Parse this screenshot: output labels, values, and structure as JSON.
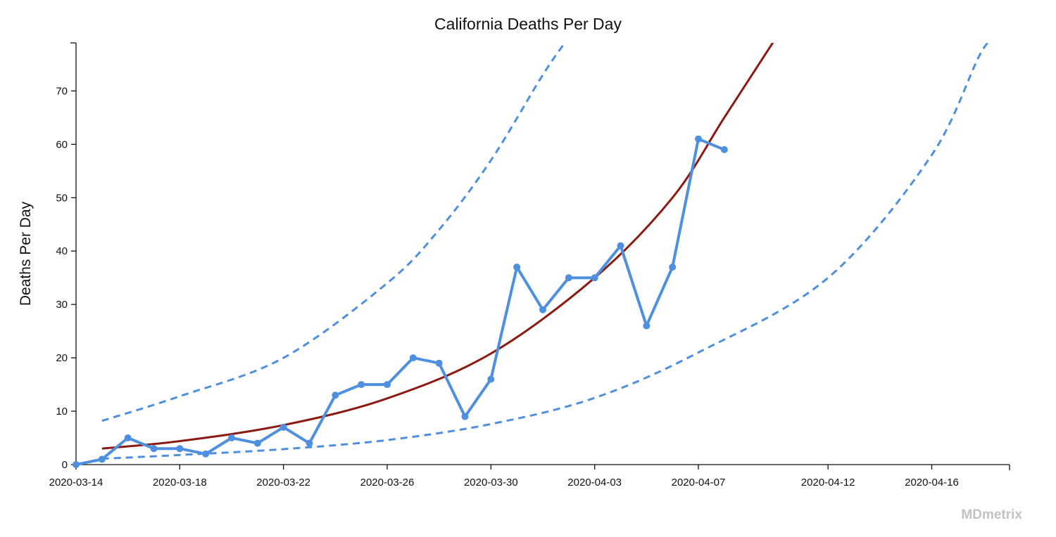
{
  "chart_data": {
    "type": "line",
    "title": "California Deaths Per Day",
    "xlabel": "",
    "ylabel": "Deaths Per Day",
    "x_ticks": [
      "2020-03-14",
      "2020-03-18",
      "2020-03-22",
      "2020-03-26",
      "2020-03-30",
      "2020-04-03",
      "2020-04-07",
      "2020-04-12",
      "2020-04-16"
    ],
    "y_ticks": [
      0,
      10,
      20,
      30,
      40,
      50,
      60,
      70
    ],
    "xlim": [
      "2020-03-14",
      "2020-04-19"
    ],
    "ylim": [
      0,
      79
    ],
    "grid": false,
    "series": [
      {
        "style": "solid-line-with-markers",
        "color": "#4f8fe0",
        "points": [
          [
            "2020-03-14",
            0
          ],
          [
            "2020-03-15",
            1
          ],
          [
            "2020-03-16",
            5
          ],
          [
            "2020-03-17",
            3
          ],
          [
            "2020-03-18",
            3
          ],
          [
            "2020-03-19",
            2
          ],
          [
            "2020-03-20",
            5
          ],
          [
            "2020-03-21",
            4
          ],
          [
            "2020-03-22",
            7
          ],
          [
            "2020-03-23",
            4
          ],
          [
            "2020-03-24",
            13
          ],
          [
            "2020-03-25",
            15
          ],
          [
            "2020-03-26",
            15
          ],
          [
            "2020-03-27",
            20
          ],
          [
            "2020-03-28",
            19
          ],
          [
            "2020-03-29",
            9
          ],
          [
            "2020-03-30",
            16
          ],
          [
            "2020-03-31",
            37
          ],
          [
            "2020-04-01",
            29
          ],
          [
            "2020-04-02",
            35
          ],
          [
            "2020-04-03",
            35
          ],
          [
            "2020-04-04",
            41
          ],
          [
            "2020-04-05",
            26
          ],
          [
            "2020-04-06",
            37
          ],
          [
            "2020-04-07",
            61
          ],
          [
            "2020-04-08",
            59
          ]
        ]
      },
      {
        "style": "solid-curve",
        "color": "#8b1a12",
        "points": [
          [
            "2020-03-15",
            3.0
          ],
          [
            "2020-03-18",
            4.4
          ],
          [
            "2020-03-22",
            7.4
          ],
          [
            "2020-03-26",
            12.4
          ],
          [
            "2020-03-30",
            20.8
          ],
          [
            "2020-04-03",
            35.0
          ],
          [
            "2020-04-06",
            50.0
          ],
          [
            "2020-04-08",
            65.0
          ],
          [
            "2020-04-10",
            80.0
          ]
        ]
      },
      {
        "style": "dashed-curve",
        "color": "#4f8fe0",
        "points": [
          [
            "2020-03-15",
            8.2
          ],
          [
            "2020-03-18",
            12.8
          ],
          [
            "2020-03-22",
            20.0
          ],
          [
            "2020-03-26",
            34.0
          ],
          [
            "2020-03-28",
            44.0
          ],
          [
            "2020-03-30",
            57.0
          ],
          [
            "2020-04-01",
            73.0
          ],
          [
            "2020-04-02",
            80.0
          ]
        ]
      },
      {
        "style": "dashed-curve",
        "color": "#4f8fe0",
        "points": [
          [
            "2020-03-15",
            1.1
          ],
          [
            "2020-03-18",
            1.8
          ],
          [
            "2020-03-22",
            2.9
          ],
          [
            "2020-03-26",
            4.6
          ],
          [
            "2020-03-30",
            7.6
          ],
          [
            "2020-04-03",
            12.5
          ],
          [
            "2020-04-07",
            21.0
          ],
          [
            "2020-04-12",
            35.0
          ],
          [
            "2020-04-16",
            58.0
          ],
          [
            "2020-04-18",
            78.0
          ],
          [
            "2020-04-19",
            80.0
          ]
        ]
      }
    ]
  },
  "watermark": "MDmetrix",
  "colors": {
    "line": "#4f8fe0",
    "fit": "#8b1a12",
    "axis": "#111111",
    "watermark": "#c2c2c2"
  }
}
